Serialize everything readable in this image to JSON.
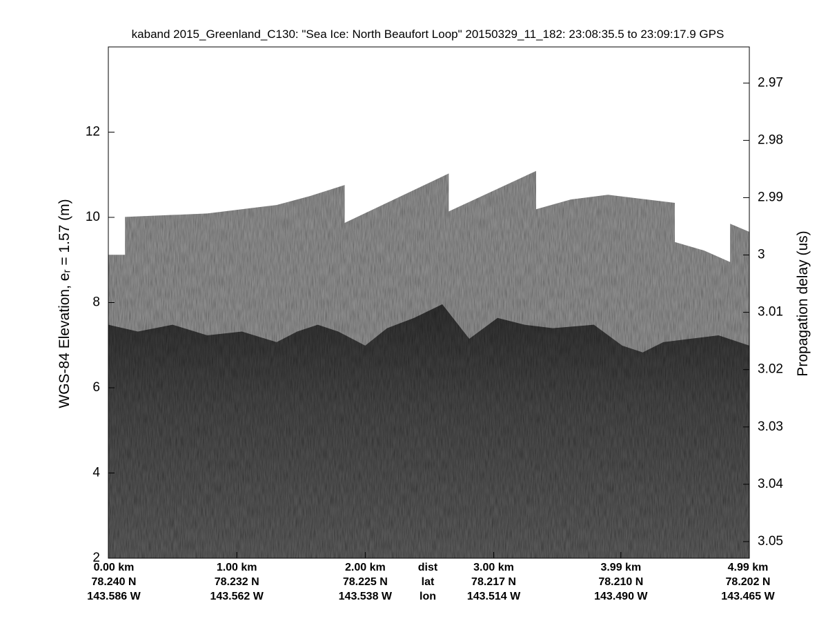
{
  "chart_data": {
    "type": "echogram",
    "title": "kaband 2015_Greenland_C130: \"Sea Ice: North Beaufort Loop\"  20150329_11_182: 23:08:35.5 to 23:09:17.9 GPS",
    "ylabel": "WGS-84 Elevation, eᵣ = 1.57 (m)",
    "y2label": "Propagation delay (us)",
    "xlim": [
      0,
      4.99
    ],
    "xticks": [
      {
        "value": 0,
        "label": "0.00 km"
      },
      {
        "value": 1,
        "label": "1.00 km"
      },
      {
        "value": 2,
        "label": "2.00 km"
      },
      {
        "value": 3,
        "label": "3.00 km"
      },
      {
        "value": 3.99,
        "label": "3.99 km"
      },
      {
        "value": 4.99,
        "label": "4.99 km"
      }
    ],
    "lat_labels": [
      "78.240 N",
      "78.232 N",
      "78.225 N",
      "78.217 N",
      "78.210 N",
      "78.202 N"
    ],
    "lon_labels": [
      "143.586 W",
      "143.562 W",
      "143.538 W",
      "143.514 W",
      "143.490 W",
      "143.465 W"
    ],
    "xtick_row_labels": [
      "dist",
      "lat",
      "lon"
    ],
    "ylim": [
      2,
      14
    ],
    "yticks": [
      2,
      4,
      6,
      8,
      10,
      12
    ],
    "y2lim": [
      3.0529,
      2.9637
    ],
    "y2ticks": [
      2.97,
      2.98,
      2.99,
      3,
      3.01,
      3.02,
      3.03,
      3.04,
      3.05
    ],
    "series": [
      {
        "color": "#8a8a8a",
        "x": [
          0,
          0.13,
          0.13,
          0.77,
          1.31,
          1.57,
          1.84,
          1.84,
          2.65,
          2.65,
          3.33,
          3.33,
          3.6,
          3.89,
          4.41,
          4.41,
          4.64,
          4.84,
          4.84,
          4.99
        ],
        "values": [
          9.12,
          9.12,
          10.01,
          10.09,
          10.29,
          10.5,
          10.76,
          9.87,
          11.03,
          10.14,
          11.09,
          10.19,
          10.42,
          10.53,
          10.34,
          9.42,
          9.22,
          8.95,
          9.85,
          9.66
        ]
      },
      {
        "color": "#3e3e3e",
        "x": [
          0,
          0.23,
          0.5,
          0.77,
          1.04,
          1.31,
          1.47,
          1.63,
          1.79,
          2.0,
          2.17,
          2.38,
          2.6,
          2.81,
          3.03,
          3.24,
          3.46,
          3.78,
          4.0,
          4.16,
          4.32,
          4.53,
          4.75,
          4.99
        ],
        "values": [
          7.48,
          7.32,
          7.48,
          7.23,
          7.32,
          7.07,
          7.32,
          7.48,
          7.32,
          6.99,
          7.4,
          7.64,
          7.96,
          7.15,
          7.64,
          7.48,
          7.4,
          7.48,
          6.99,
          6.83,
          7.07,
          7.15,
          7.23,
          6.99
        ]
      }
    ]
  }
}
